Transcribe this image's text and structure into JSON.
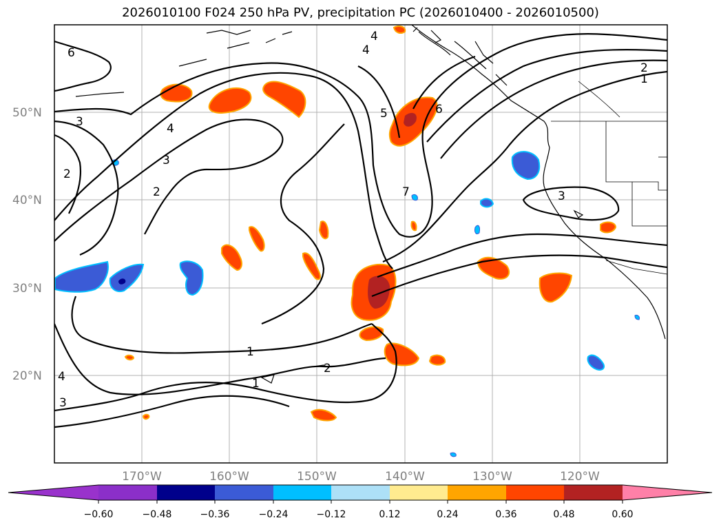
{
  "title": "2026010100 F024 250 hPa PV, precipitation PC (2026010400 - 2026010500)",
  "lat_labels": [
    "50°N",
    "40°N",
    "30°N",
    "20°N"
  ],
  "lon_labels": [
    "170°W",
    "160°W",
    "150°W",
    "140°W",
    "130°W",
    "120°W"
  ],
  "colorbar": {
    "colors": [
      "#9932CC",
      "#8B2FC9",
      "#00008B",
      "#3B5BD6",
      "#00BFFF",
      "#ADE0F7",
      "#FFFFFF",
      "#FFEB8F",
      "#FFA500",
      "#FF4500",
      "#B22222",
      "#FF80A8"
    ],
    "labels": [
      "−0.60",
      "−0.48",
      "−0.36",
      "−0.24",
      "−0.12",
      "0.12",
      "0.24",
      "0.36",
      "0.48",
      "0.60"
    ]
  },
  "contour_labels": [
    "6",
    "3",
    "2",
    "4",
    "3",
    "2",
    "5",
    "6",
    "7",
    "2",
    "1",
    "3",
    "1",
    "2",
    "1",
    "4",
    "3",
    "4",
    "4"
  ]
}
